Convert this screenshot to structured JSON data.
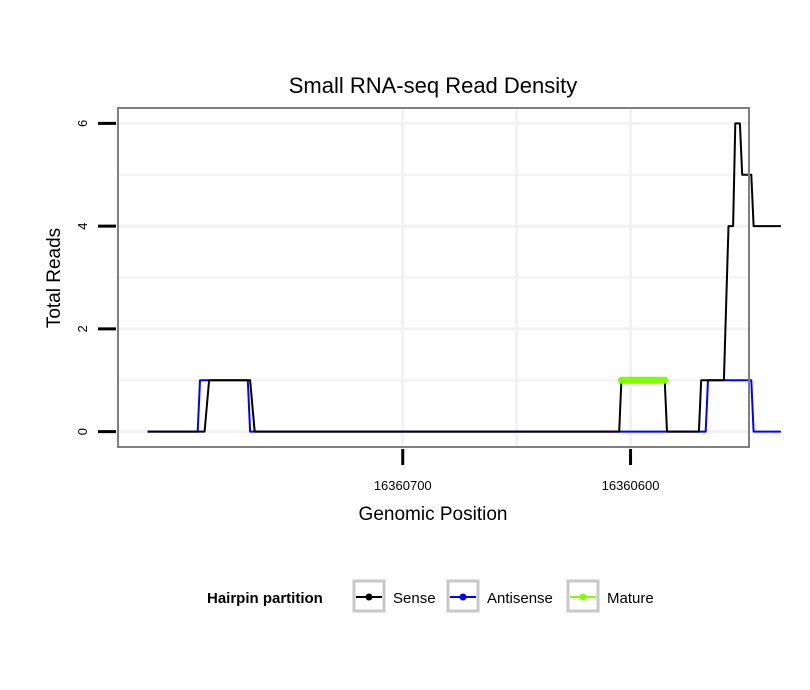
{
  "chart_data": {
    "type": "line",
    "title": "Small RNA-seq Read Density",
    "xlabel": "Genomic Position",
    "ylabel": "Total Reads",
    "xlim": [
      16360825,
      16360548
    ],
    "ylim": [
      -0.3,
      6.3
    ],
    "x_reversed": true,
    "x_ticks": [
      16360700,
      16360600
    ],
    "x_tick_labels": [
      "16360700",
      "16360600"
    ],
    "y_ticks": [
      0,
      2,
      4,
      6
    ],
    "y_tick_labels": [
      "0",
      "2",
      "4",
      "6"
    ],
    "legend": {
      "title": "Hairpin partition",
      "placement": "bottom",
      "entries": [
        "Sense",
        "Antisense",
        "Mature"
      ]
    },
    "series": [
      {
        "name": "Sense",
        "color": "#000000",
        "x": [
          16360812,
          16360787,
          16360785,
          16360767,
          16360765,
          16360605,
          16360604,
          16360585,
          16360584,
          16360570,
          16360569,
          16360559,
          16360557,
          16360555,
          16360554,
          16360552,
          16360551,
          16360547,
          16360546,
          16360534
        ],
        "y": [
          0,
          0,
          1,
          1,
          0,
          0,
          1,
          1,
          0,
          0,
          1,
          1,
          4,
          4,
          6,
          6,
          5,
          5,
          4,
          4
        ]
      },
      {
        "name": "Antisense",
        "color": "#0000ff",
        "x": [
          16360812,
          16360790,
          16360789,
          16360768,
          16360767,
          16360567,
          16360566,
          16360547,
          16360546,
          16360534
        ],
        "y": [
          0,
          0,
          1,
          1,
          0,
          0,
          1,
          1,
          0,
          0
        ]
      },
      {
        "name": "Mature",
        "color": "#7fff00",
        "x": [
          16360604,
          16360585
        ],
        "y": [
          1,
          1
        ]
      }
    ]
  }
}
